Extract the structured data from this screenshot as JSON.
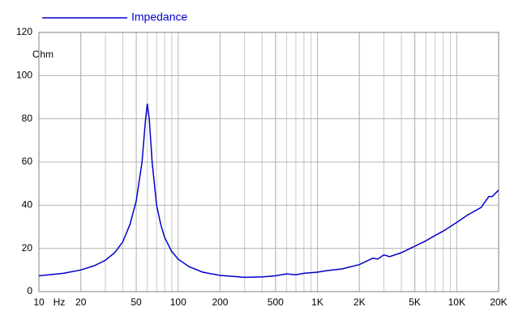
{
  "chart_data": {
    "type": "line",
    "x_label": "Hz",
    "y_label": "Ohm",
    "xscale": "log",
    "minor_grid": true,
    "grid": true,
    "xlim": [
      10,
      20000
    ],
    "ylim": [
      0,
      120
    ],
    "xticks": [
      10,
      20,
      50,
      100,
      200,
      500,
      {
        "value": 1000,
        "label": "1K"
      },
      {
        "value": 2000,
        "label": "2K"
      },
      {
        "value": 5000,
        "label": "5K"
      },
      {
        "value": 10000,
        "label": "10K"
      },
      {
        "value": 20000,
        "label": "20K"
      }
    ],
    "yticks": [
      0,
      20,
      40,
      60,
      80,
      100,
      120
    ],
    "series": [
      {
        "name": "Impedance",
        "color": "#0000cc",
        "x": [
          10,
          15,
          20,
          25,
          30,
          35,
          40,
          45,
          50,
          55,
          58,
          60,
          62,
          65,
          70,
          75,
          80,
          90,
          100,
          120,
          150,
          200,
          300,
          400,
          500,
          600,
          700,
          800,
          1000,
          1200,
          1500,
          2000,
          2500,
          2700,
          3000,
          3300,
          4000,
          5000,
          6000,
          7000,
          8000,
          10000,
          12000,
          15000,
          17000,
          18000,
          20000
        ],
        "values": [
          7.3,
          8.5,
          10,
          12,
          14.5,
          18,
          23,
          31,
          42,
          60,
          78,
          87,
          80,
          60,
          40,
          31,
          25,
          18.5,
          15,
          11.5,
          9,
          7.5,
          6.6,
          6.8,
          7.3,
          8.2,
          7.8,
          8.5,
          9,
          9.8,
          10.5,
          12.5,
          15.5,
          15,
          17,
          16.2,
          18,
          21,
          23.5,
          26,
          28,
          32,
          35.5,
          39,
          44,
          44,
          47
        ]
      }
    ]
  }
}
